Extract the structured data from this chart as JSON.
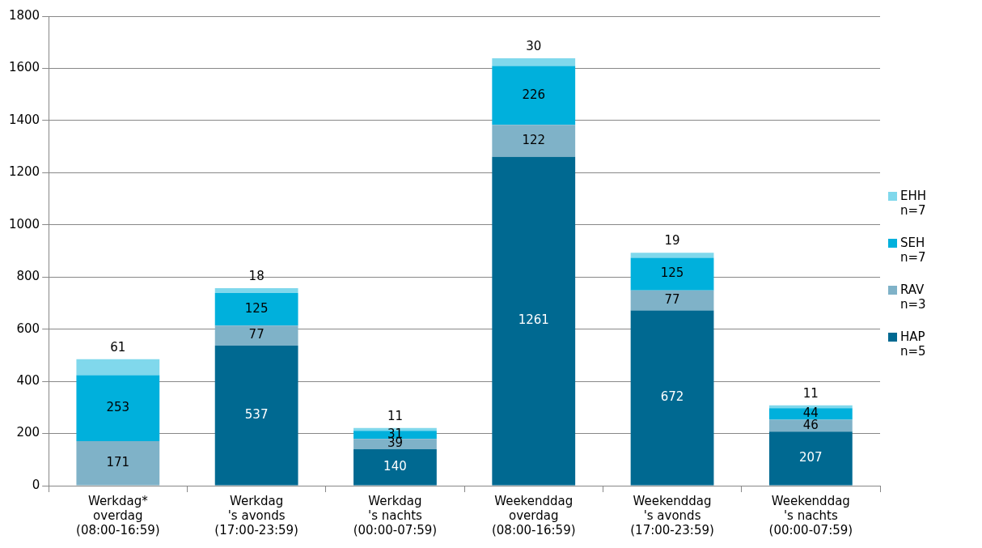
{
  "chart_data": {
    "type": "bar",
    "stacked": true,
    "categories": [
      "Werkdag*\noverdag\n(08:00-16:59)",
      "Werkdag\n's avonds\n(17:00-23:59)",
      "Werkdag\n's nachts\n(00:00-07:59)",
      "Weekenddag\noverdag\n(08:00-16:59)",
      "Weekenddag\n's avonds\n(17:00-23:59)",
      "Weekenddag\n's nachts\n(00:00-07:59)"
    ],
    "series": [
      {
        "name": "HAP n=5",
        "color": "#006991",
        "values": [
          null,
          537,
          140,
          1261,
          672,
          207
        ]
      },
      {
        "name": "RAV n=3",
        "color": "#7fb2c8",
        "values": [
          171,
          77,
          39,
          122,
          77,
          46
        ]
      },
      {
        "name": "SEH n=7",
        "color": "#00b0dc",
        "values": [
          253,
          125,
          31,
          226,
          125,
          44
        ]
      },
      {
        "name": "EHH n=7",
        "color": "#80d8ec",
        "values": [
          61,
          18,
          11,
          30,
          19,
          11
        ]
      }
    ],
    "ylim": [
      0,
      1800
    ],
    "yticks": [
      0,
      200,
      400,
      600,
      800,
      1000,
      1200,
      1400,
      1600,
      1800
    ],
    "grid": "y",
    "legend": "right",
    "data_labels": true
  }
}
